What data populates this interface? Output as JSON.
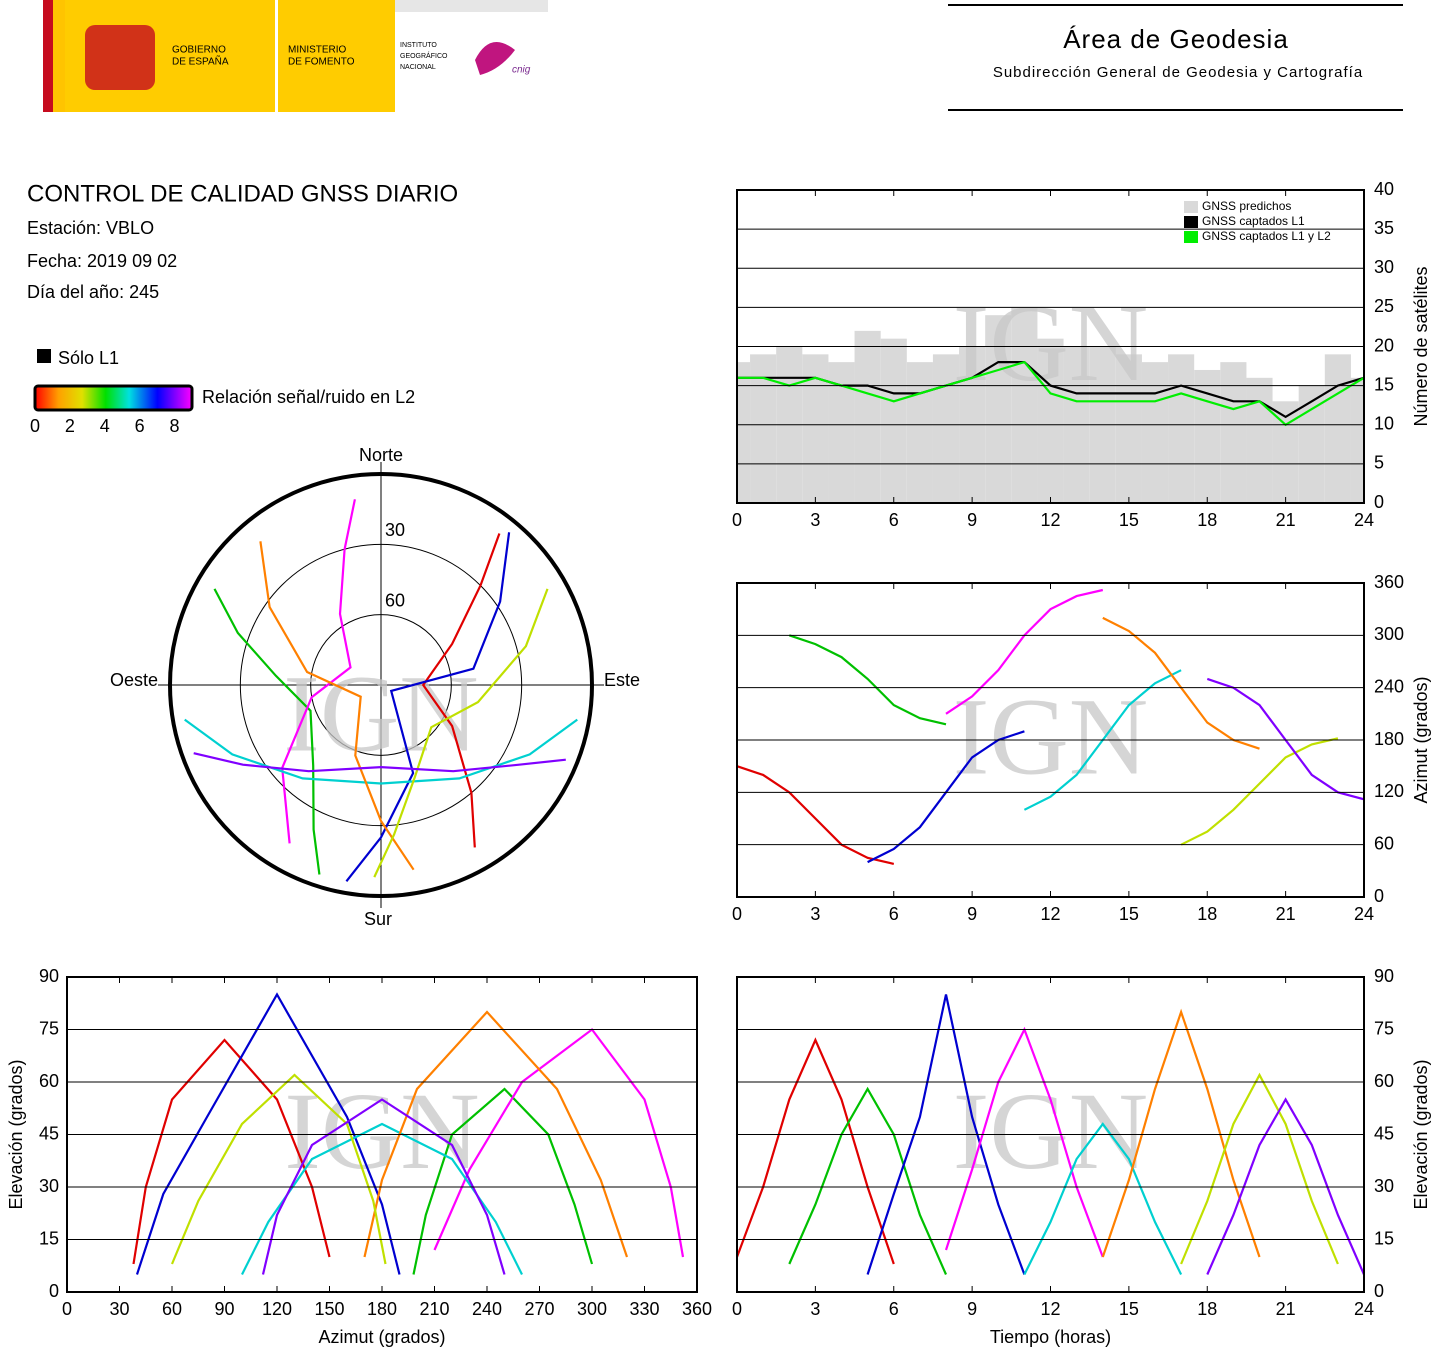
{
  "header": {
    "gobierno": [
      "GOBIERNO",
      "DE ESPAÑA"
    ],
    "ministerio": [
      "MINISTERIO",
      "DE FOMENTO"
    ],
    "instituto": [
      "INSTITUTO",
      "GEOGRÁFICO",
      "NACIONAL"
    ],
    "cnig": "cnig",
    "area": "Área de Geodesia",
    "subdireccion": "Subdirección General de Geodesia y Cartografía"
  },
  "report": {
    "title": "CONTROL DE CALIDAD GNSS DIARIO",
    "station": "Estación: VBLO",
    "date": "Fecha: 2019 09 02",
    "doy": "Día del año: 245"
  },
  "legend": {
    "l1_only": "Sólo L1",
    "l1_only_color": "#000000",
    "colorbar_label": "Relación señal/ruido en L2",
    "colorbar_lim": [
      0,
      9
    ],
    "colorbar_ticks": [
      0,
      2,
      4,
      6,
      8
    ]
  },
  "watermark": "IGN",
  "chart_data": [
    {
      "type": "line",
      "y_label": "Número de satélites",
      "xlim": [
        0,
        24
      ],
      "xticks": [
        0,
        3,
        6,
        9,
        12,
        15,
        18,
        21,
        24
      ],
      "ylim": [
        0,
        40
      ],
      "yticks": [
        0,
        5,
        10,
        15,
        20,
        25,
        30,
        35,
        40
      ],
      "grid": true,
      "legend": "upper right",
      "x": [
        0,
        1,
        2,
        3,
        4,
        5,
        6,
        7,
        8,
        9,
        10,
        11,
        12,
        13,
        14,
        15,
        16,
        17,
        18,
        19,
        20,
        21,
        22,
        23,
        24
      ],
      "series": [
        {
          "name": "GNSS predichos",
          "type": "bar",
          "color": "#d9d9d9",
          "values": [
            18,
            19,
            20,
            19,
            18,
            22,
            21,
            18,
            19,
            20,
            24,
            25,
            21,
            20,
            20,
            19,
            18,
            19,
            17,
            18,
            16,
            13,
            15,
            19,
            16
          ]
        },
        {
          "name": "GNSS captados L1",
          "type": "line",
          "color": "#000000",
          "values": [
            16,
            16,
            16,
            16,
            15,
            15,
            14,
            14,
            15,
            16,
            18,
            18,
            15,
            14,
            14,
            14,
            14,
            15,
            14,
            13,
            13,
            11,
            13,
            15,
            16
          ]
        },
        {
          "name": "GNSS captados L1 y L2",
          "type": "line",
          "color": "#00ee00",
          "values": [
            16,
            16,
            15,
            16,
            15,
            14,
            13,
            14,
            15,
            16,
            17,
            18,
            14,
            13,
            13,
            13,
            13,
            14,
            13,
            12,
            13,
            10,
            12,
            14,
            16
          ]
        }
      ]
    },
    {
      "type": "line",
      "y_label": "Azimut (grados)",
      "xlim": [
        0,
        24
      ],
      "xticks": [
        0,
        3,
        6,
        9,
        12,
        15,
        18,
        21,
        24
      ],
      "ylim": [
        0,
        360
      ],
      "yticks": [
        0,
        60,
        120,
        180,
        240,
        300,
        360
      ],
      "grid": true,
      "series": [
        {
          "color": "#e00000",
          "x": [
            0,
            1,
            2,
            3,
            4,
            5,
            6
          ],
          "values": [
            150,
            140,
            120,
            90,
            60,
            45,
            38
          ]
        },
        {
          "color": "#00c000",
          "x": [
            2,
            3,
            4,
            5,
            6,
            7,
            8
          ],
          "values": [
            300,
            290,
            275,
            250,
            220,
            205,
            198
          ]
        },
        {
          "color": "#0000d0",
          "x": [
            5,
            6,
            7,
            8,
            9,
            10,
            11
          ],
          "values": [
            40,
            55,
            80,
            120,
            160,
            180,
            190
          ]
        },
        {
          "color": "#ff00ff",
          "x": [
            8,
            9,
            10,
            11,
            12,
            13,
            14
          ],
          "values": [
            210,
            230,
            260,
            300,
            330,
            345,
            352
          ]
        },
        {
          "color": "#00d0d0",
          "x": [
            11,
            12,
            13,
            14,
            15,
            16,
            17
          ],
          "values": [
            100,
            115,
            140,
            180,
            220,
            245,
            260
          ]
        },
        {
          "color": "#ff8000",
          "x": [
            14,
            15,
            16,
            17,
            18,
            19,
            20
          ],
          "values": [
            320,
            305,
            280,
            240,
            200,
            180,
            170
          ]
        },
        {
          "color": "#c0e000",
          "x": [
            17,
            18,
            19,
            20,
            21,
            22,
            23
          ],
          "values": [
            60,
            75,
            100,
            130,
            160,
            175,
            182
          ]
        },
        {
          "color": "#8000ff",
          "x": [
            18,
            19,
            20,
            21,
            22,
            23,
            24
          ],
          "values": [
            250,
            240,
            220,
            180,
            140,
            120,
            112
          ]
        }
      ]
    },
    {
      "type": "line",
      "x_label": "Azimut (grados)",
      "y_label": "Elevación (grados)",
      "xlim": [
        0,
        360
      ],
      "xticks": [
        0,
        30,
        60,
        90,
        120,
        150,
        180,
        210,
        240,
        270,
        300,
        330,
        360
      ],
      "ylim": [
        0,
        90
      ],
      "yticks": [
        0,
        15,
        30,
        45,
        60,
        75,
        90
      ],
      "grid": true,
      "series": [
        {
          "color": "#e00000",
          "x": [
            150,
            140,
            120,
            90,
            60,
            45,
            38
          ],
          "values": [
            10,
            30,
            55,
            72,
            55,
            30,
            8
          ]
        },
        {
          "color": "#00c000",
          "x": [
            300,
            290,
            275,
            250,
            220,
            205,
            198
          ],
          "values": [
            8,
            25,
            45,
            58,
            45,
            22,
            5
          ]
        },
        {
          "color": "#0000d0",
          "x": [
            40,
            55,
            80,
            120,
            160,
            180,
            190
          ],
          "values": [
            5,
            28,
            50,
            85,
            50,
            25,
            5
          ]
        },
        {
          "color": "#ff00ff",
          "x": [
            210,
            230,
            260,
            300,
            330,
            345,
            352
          ],
          "values": [
            12,
            35,
            60,
            75,
            55,
            30,
            10
          ]
        },
        {
          "color": "#00d0d0",
          "x": [
            100,
            115,
            140,
            180,
            220,
            245,
            260
          ],
          "values": [
            5,
            20,
            38,
            48,
            38,
            20,
            5
          ]
        },
        {
          "color": "#ff8000",
          "x": [
            320,
            305,
            280,
            240,
            200,
            180,
            170
          ],
          "values": [
            10,
            32,
            58,
            80,
            58,
            32,
            10
          ]
        },
        {
          "color": "#c0e000",
          "x": [
            60,
            75,
            100,
            130,
            160,
            175,
            182
          ],
          "values": [
            8,
            26,
            48,
            62,
            48,
            26,
            8
          ]
        },
        {
          "color": "#8000ff",
          "x": [
            250,
            240,
            220,
            180,
            140,
            120,
            112
          ],
          "values": [
            5,
            22,
            42,
            55,
            42,
            22,
            5
          ]
        }
      ]
    },
    {
      "type": "line",
      "x_label": "Tiempo (horas)",
      "y_label": "Elevación (grados)",
      "xlim": [
        0,
        24
      ],
      "xticks": [
        0,
        3,
        6,
        9,
        12,
        15,
        18,
        21,
        24
      ],
      "ylim": [
        0,
        90
      ],
      "yticks": [
        0,
        15,
        30,
        45,
        60,
        75,
        90
      ],
      "grid": true,
      "series": [
        {
          "color": "#e00000",
          "x": [
            0,
            1,
            2,
            3,
            4,
            5,
            6
          ],
          "values": [
            10,
            30,
            55,
            72,
            55,
            30,
            8
          ]
        },
        {
          "color": "#00c000",
          "x": [
            2,
            3,
            4,
            5,
            6,
            7,
            8
          ],
          "values": [
            8,
            25,
            45,
            58,
            45,
            22,
            5
          ]
        },
        {
          "color": "#0000d0",
          "x": [
            5,
            6,
            7,
            8,
            9,
            10,
            11
          ],
          "values": [
            5,
            28,
            50,
            85,
            50,
            25,
            5
          ]
        },
        {
          "color": "#ff00ff",
          "x": [
            8,
            9,
            10,
            11,
            12,
            13,
            14
          ],
          "values": [
            12,
            35,
            60,
            75,
            55,
            30,
            10
          ]
        },
        {
          "color": "#00d0d0",
          "x": [
            11,
            12,
            13,
            14,
            15,
            16,
            17
          ],
          "values": [
            5,
            20,
            38,
            48,
            38,
            20,
            5
          ]
        },
        {
          "color": "#ff8000",
          "x": [
            14,
            15,
            16,
            17,
            18,
            19,
            20
          ],
          "values": [
            10,
            32,
            58,
            80,
            58,
            32,
            10
          ]
        },
        {
          "color": "#c0e000",
          "x": [
            17,
            18,
            19,
            20,
            21,
            22,
            23
          ],
          "values": [
            8,
            26,
            48,
            62,
            48,
            26,
            8
          ]
        },
        {
          "color": "#8000ff",
          "x": [
            18,
            19,
            20,
            21,
            22,
            23,
            24
          ],
          "values": [
            5,
            22,
            42,
            55,
            42,
            22,
            5
          ]
        }
      ]
    },
    {
      "type": "polar",
      "direction_labels": {
        "north": "Norte",
        "south": "Sur",
        "east": "Este",
        "west": "Oeste"
      },
      "rlim": [
        90,
        0
      ],
      "rticks": [
        30,
        60
      ],
      "series": [
        {
          "color": "#e00000",
          "x": [
            150,
            140,
            120,
            90,
            60,
            45,
            38
          ],
          "values": [
            10,
            30,
            55,
            72,
            55,
            30,
            8
          ]
        },
        {
          "color": "#00c000",
          "x": [
            300,
            290,
            275,
            250,
            220,
            205,
            198
          ],
          "values": [
            8,
            25,
            45,
            58,
            45,
            22,
            5
          ]
        },
        {
          "color": "#0000d0",
          "x": [
            40,
            55,
            80,
            120,
            160,
            180,
            190
          ],
          "values": [
            5,
            28,
            50,
            85,
            50,
            25,
            5
          ]
        },
        {
          "color": "#ff00ff",
          "x": [
            210,
            230,
            260,
            300,
            330,
            345,
            352
          ],
          "values": [
            12,
            35,
            60,
            75,
            55,
            30,
            10
          ]
        },
        {
          "color": "#00d0d0",
          "x": [
            100,
            115,
            140,
            180,
            220,
            245,
            260
          ],
          "values": [
            5,
            20,
            38,
            48,
            38,
            20,
            5
          ]
        },
        {
          "color": "#ff8000",
          "x": [
            320,
            305,
            280,
            240,
            200,
            180,
            170
          ],
          "values": [
            10,
            32,
            58,
            80,
            58,
            32,
            10
          ]
        },
        {
          "color": "#c0e000",
          "x": [
            60,
            75,
            100,
            130,
            160,
            175,
            182
          ],
          "values": [
            8,
            26,
            48,
            62,
            48,
            26,
            8
          ]
        },
        {
          "color": "#8000ff",
          "x": [
            250,
            240,
            220,
            180,
            140,
            120,
            112
          ],
          "values": [
            5,
            22,
            42,
            55,
            42,
            22,
            5
          ]
        }
      ]
    }
  ]
}
